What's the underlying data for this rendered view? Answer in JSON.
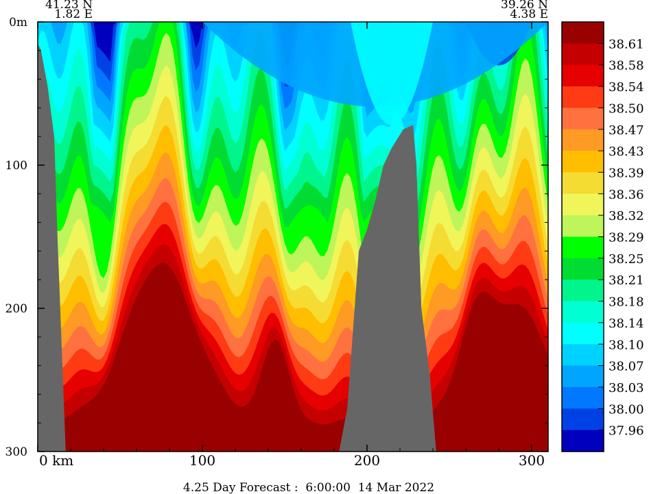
{
  "chart_data": {
    "type": "heatmap",
    "title": "",
    "footer": "4.25 Day Forecast :  6:00:00  14 Mar 2022",
    "start_point": {
      "lat": "41.23 N",
      "lon": "1.82 E"
    },
    "end_point": {
      "lat": "39.26 N",
      "lon": "4.38 E"
    },
    "x_axis": {
      "range": [
        0,
        310
      ],
      "ticks": [
        0,
        100,
        200,
        300
      ],
      "tick_labels": [
        "0 km",
        "100",
        "200",
        "300"
      ],
      "unit": "km"
    },
    "y_axis": {
      "range": [
        0,
        300
      ],
      "inverted": true,
      "ticks": [
        0,
        100,
        200,
        300
      ],
      "tick_labels": [
        "0m",
        "100",
        "200",
        "300"
      ],
      "unit": "m"
    },
    "colorbar": {
      "labels": [
        "38.61",
        "38.58",
        "38.54",
        "38.50",
        "38.47",
        "38.43",
        "38.39",
        "38.36",
        "38.32",
        "38.29",
        "38.25",
        "38.21",
        "38.18",
        "38.14",
        "38.10",
        "38.07",
        "38.03",
        "38.00",
        "37.96"
      ],
      "colors": [
        "#990000",
        "#c40000",
        "#e60000",
        "#ff3b14",
        "#ff7240",
        "#ff9a24",
        "#ffbe00",
        "#f5dc32",
        "#f0f55a",
        "#bef55a",
        "#00ff00",
        "#00dc32",
        "#00f58c",
        "#00ffd2",
        "#00ffff",
        "#00d2ff",
        "#00a5ff",
        "#0078ff",
        "#0041e6",
        "#0000be"
      ]
    },
    "salinity_layers": [
      {
        "value": 37.96,
        "color": "#0000be",
        "x": [
          273,
          284
        ],
        "top": [
          10,
          10
        ],
        "bottom": [
          12,
          12
        ]
      },
      {
        "value": 38.0,
        "color": "#0041e6",
        "x": [
          260,
          300
        ],
        "top": [
          30,
          30
        ],
        "bottom": [
          38,
          38
        ]
      },
      {
        "value": 38.07,
        "color": "#00a5ff",
        "x": [
          100,
          190,
          240,
          310
        ],
        "top": [
          45,
          40,
          60,
          70
        ],
        "bottom": [
          48,
          44,
          64,
          74
        ]
      },
      {
        "value": 38.1,
        "color": "#00ffff",
        "x": [
          190,
          225,
          240
        ],
        "top": [
          70,
          75,
          70
        ],
        "bottom": [
          85,
          90,
          80
        ]
      }
    ],
    "bathymetry": {
      "fill": "#666666",
      "left_wall": {
        "x": [
          0,
          2,
          6,
          10,
          12,
          17
        ],
        "depth": [
          15,
          20,
          45,
          80,
          150,
          300
        ]
      },
      "seamount": {
        "x": [
          183,
          188,
          195,
          200,
          205,
          210,
          215,
          222,
          228,
          230,
          233,
          238,
          242
        ],
        "depth": [
          300,
          270,
          160,
          145,
          125,
          100,
          88,
          75,
          72,
          100,
          200,
          245,
          300
        ]
      }
    }
  }
}
